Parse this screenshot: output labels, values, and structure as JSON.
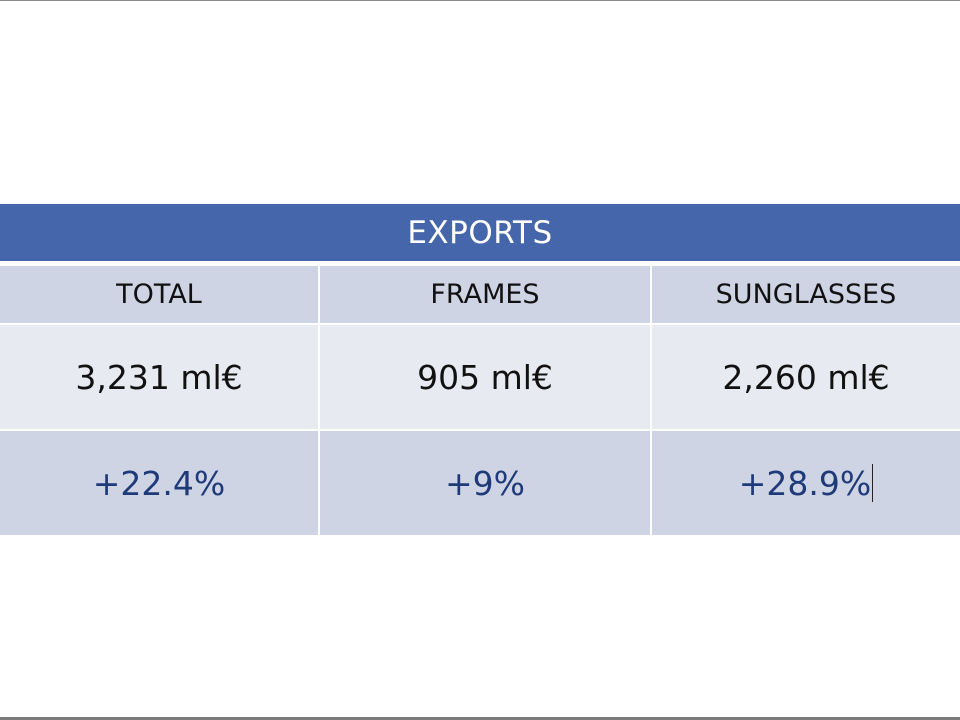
{
  "table": {
    "title": "EXPORTS",
    "headers": [
      "TOTAL",
      "FRAMES",
      "SUNGLASSES"
    ],
    "values": [
      "3,231 ml€",
      "905 ml€",
      "2,260 ml€"
    ],
    "growth": [
      "+22.4%",
      "+9%",
      "+28.9%"
    ]
  }
}
